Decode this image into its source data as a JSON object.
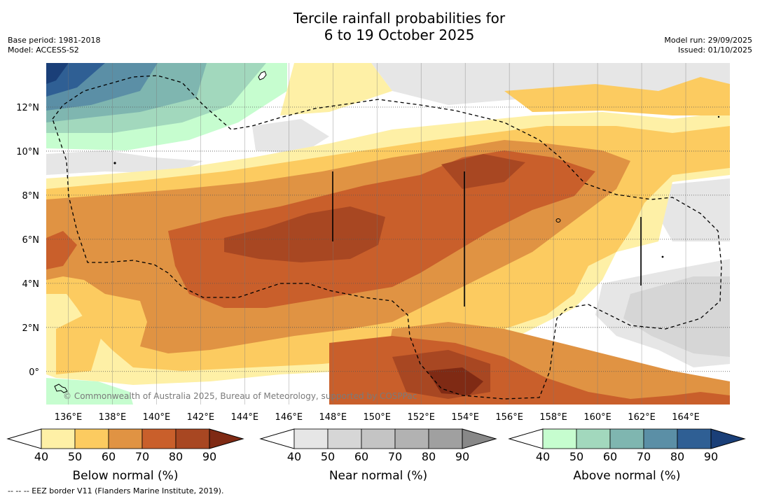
{
  "title_line1": "Tercile rainfall probabilities for",
  "title_line2": "6 to 19 October 2025",
  "base_period": "Base period: 1981-2018",
  "model": "Model: ACCESS-S2",
  "model_run": "Model run: 29/09/2025",
  "issued": "Issued: 01/10/2025",
  "copyright": "© Commonwealth of Australia 2025, Bureau of Meteorology, supported by COSPPac",
  "footnote": "-- -- -- EEZ border V11 (Flanders Marine Institute, 2019).",
  "map": {
    "lon_labels": [
      "136°E",
      "138°E",
      "140°E",
      "142°E",
      "144°E",
      "146°E",
      "148°E",
      "150°E",
      "152°E",
      "154°E",
      "156°E",
      "158°E",
      "160°E",
      "162°E",
      "164°E"
    ],
    "lat_labels": [
      "12°N",
      "10°N",
      "8°N",
      "6°N",
      "4°N",
      "2°N",
      "0°"
    ],
    "lon_range": [
      135,
      166
    ],
    "lat_range": [
      -1.5,
      14
    ],
    "colors": {
      "below": [
        "#fef0a6",
        "#fccb60",
        "#e09343",
        "#c95f2b",
        "#a84722",
        "#7f2a14"
      ],
      "near": [
        "#e6e6e6",
        "#d6d6d6",
        "#c4c4c4",
        "#b2b2b2",
        "#a0a0a0",
        "#888888"
      ],
      "above": [
        "#c6fdcf",
        "#a2d8bd",
        "#7fb6b0",
        "#5b8fa6",
        "#2f5f94",
        "#1a3f78"
      ]
    }
  },
  "legends": [
    {
      "label": "Below normal (%)",
      "ticks": [
        "40",
        "50",
        "60",
        "70",
        "80",
        "90"
      ]
    },
    {
      "label": "Near normal (%)",
      "ticks": [
        "40",
        "50",
        "60",
        "70",
        "80",
        "90"
      ]
    },
    {
      "label": "Above normal (%)",
      "ticks": [
        "40",
        "50",
        "60",
        "70",
        "80",
        "90"
      ]
    }
  ]
}
